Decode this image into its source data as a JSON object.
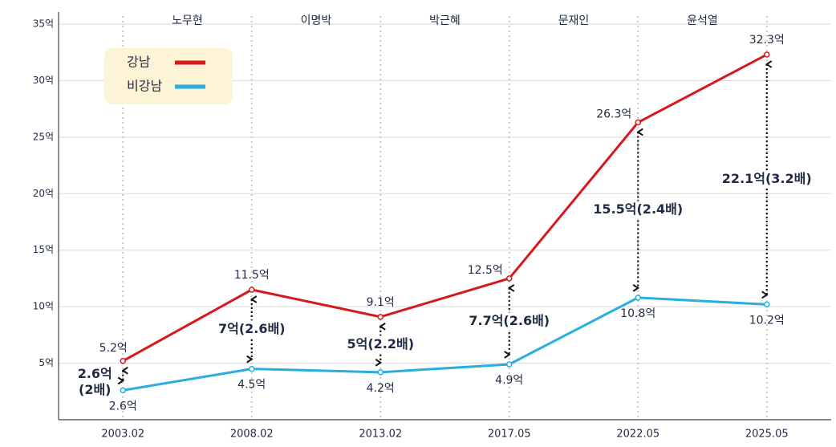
{
  "chart_data": {
    "type": "line",
    "categories": [
      "2003.02",
      "2008.02",
      "2013.02",
      "2017.05",
      "2022.05",
      "2025.05"
    ],
    "periods": [
      "노무현",
      "이명박",
      "박근혜",
      "문재인",
      "윤석열"
    ],
    "series": [
      {
        "name": "강남",
        "color": "#d7191c",
        "values": [
          5.2,
          11.5,
          9.1,
          12.5,
          26.3,
          32.3
        ],
        "value_labels": [
          "5.2억",
          "11.5억",
          "9.1억",
          "12.5억",
          "26.3억",
          "32.3억"
        ]
      },
      {
        "name": "비강남",
        "color": "#29aee0",
        "values": [
          2.6,
          4.5,
          4.2,
          4.9,
          10.8,
          10.2
        ],
        "value_labels": [
          "2.6억",
          "4.5억",
          "4.2억",
          "4.9억",
          "10.8억",
          "10.2억"
        ]
      }
    ],
    "gap_labels": [
      [
        "2.6억",
        "(2배)"
      ],
      [
        "7억(2.6배)"
      ],
      [
        "5억(2.2배)"
      ],
      [
        "7.7억(2.6배)"
      ],
      [
        "15.5억(2.4배)"
      ],
      [
        "22.1억(3.2배)"
      ]
    ],
    "ylim": [
      0,
      35
    ],
    "yticks": [
      {
        "value": 5,
        "label": "5억"
      },
      {
        "value": 10,
        "label": "10억"
      },
      {
        "value": 15,
        "label": "15억"
      },
      {
        "value": 20,
        "label": "20억"
      },
      {
        "value": 25,
        "label": "25억"
      },
      {
        "value": 30,
        "label": "30억"
      },
      {
        "value": 35,
        "label": "35억"
      }
    ],
    "grid": true,
    "legend": "upper left"
  }
}
